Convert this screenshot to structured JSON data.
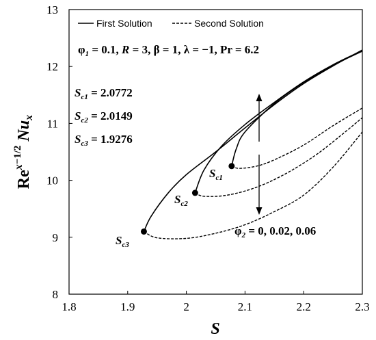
{
  "chart_data": {
    "type": "line",
    "xlabel": "S",
    "ylabel": "Re_x^{-1/2} Nu_x",
    "xlim": [
      1.8,
      2.3
    ],
    "ylim": [
      8,
      13
    ],
    "xticks": [
      "1.8",
      "1.9",
      "2",
      "2.1",
      "2.2",
      "2.3"
    ],
    "yticks": [
      "8",
      "9",
      "10",
      "11",
      "12",
      "13"
    ],
    "legend": {
      "placement": "top",
      "entries": [
        {
          "label": "First Solution",
          "style": "solid"
        },
        {
          "label": "Second Solution",
          "style": "dashed"
        }
      ]
    },
    "parameters": "φ1 = 0.1, R = 3, β = 1, λ = −1, Pr = 6.2",
    "critical_values": [
      {
        "name": "Sc1",
        "value": "2.0772"
      },
      {
        "name": "Sc2",
        "value": "2.0149"
      },
      {
        "name": "Sc3",
        "value": "1.9276"
      }
    ],
    "phi2_annotation": "φ2 = 0, 0.02, 0.06",
    "series": [
      {
        "phi2": 0,
        "critical": [
          2.0772,
          10.25
        ],
        "first": [
          [
            2.0772,
            10.25
          ],
          [
            2.085,
            10.55
          ],
          [
            2.1,
            10.85
          ],
          [
            2.15,
            11.35
          ],
          [
            2.2,
            11.72
          ],
          [
            2.25,
            12.02
          ],
          [
            2.3,
            12.27
          ]
        ],
        "second": [
          [
            2.0772,
            10.25
          ],
          [
            2.09,
            10.21
          ],
          [
            2.12,
            10.25
          ],
          [
            2.15,
            10.36
          ],
          [
            2.2,
            10.62
          ],
          [
            2.25,
            10.96
          ],
          [
            2.3,
            11.27
          ]
        ]
      },
      {
        "phi2": 0.02,
        "critical": [
          2.0149,
          9.78
        ],
        "first": [
          [
            2.0149,
            9.78
          ],
          [
            2.03,
            10.18
          ],
          [
            2.06,
            10.6
          ],
          [
            2.1,
            10.98
          ],
          [
            2.15,
            11.37
          ],
          [
            2.2,
            11.73
          ],
          [
            2.25,
            12.03
          ],
          [
            2.3,
            12.28
          ]
        ],
        "second": [
          [
            2.0149,
            9.78
          ],
          [
            2.03,
            9.72
          ],
          [
            2.07,
            9.74
          ],
          [
            2.12,
            9.88
          ],
          [
            2.17,
            10.12
          ],
          [
            2.22,
            10.44
          ],
          [
            2.26,
            10.76
          ],
          [
            2.3,
            11.1
          ]
        ]
      },
      {
        "phi2": 0.06,
        "critical": [
          1.9276,
          9.1
        ],
        "first": [
          [
            1.9276,
            9.1
          ],
          [
            1.94,
            9.37
          ],
          [
            1.97,
            9.79
          ],
          [
            2.0,
            10.1
          ],
          [
            2.05,
            10.5
          ],
          [
            2.1,
            10.92
          ],
          [
            2.15,
            11.33
          ],
          [
            2.2,
            11.7
          ],
          [
            2.25,
            12.01
          ],
          [
            2.3,
            12.29
          ]
        ],
        "second": [
          [
            1.9276,
            9.1
          ],
          [
            1.95,
            8.99
          ],
          [
            2.0,
            8.98
          ],
          [
            2.05,
            9.07
          ],
          [
            2.1,
            9.22
          ],
          [
            2.15,
            9.45
          ],
          [
            2.2,
            9.74
          ],
          [
            2.25,
            10.23
          ],
          [
            2.3,
            10.85
          ]
        ]
      }
    ]
  }
}
